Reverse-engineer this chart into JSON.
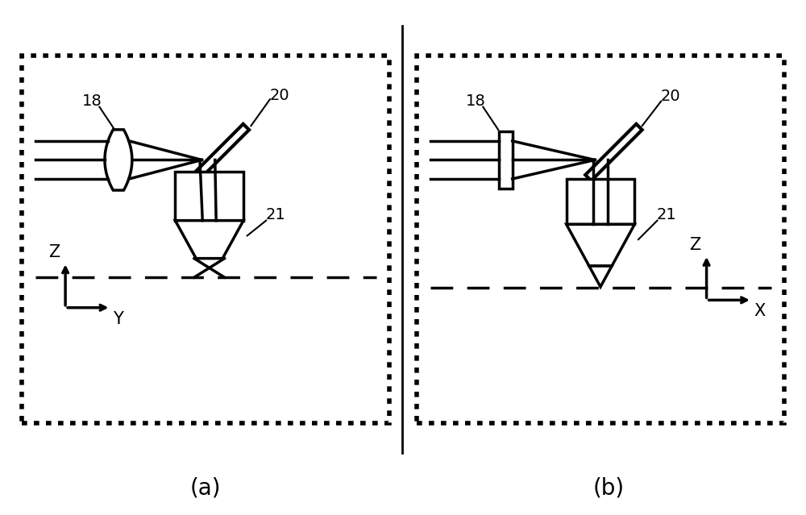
{
  "fig_width": 10.0,
  "fig_height": 6.39,
  "dpi": 100,
  "bg_color": "#ffffff",
  "line_color": "#000000",
  "lw": 2.5,
  "lw_thin": 1.5,
  "label_fontsize": 15,
  "annotation_fontsize": 14,
  "caption_fontsize": 20,
  "panel_a_label": "(a)",
  "panel_b_label": "(b)",
  "label_18": "18",
  "label_20": "20",
  "label_21": "21"
}
